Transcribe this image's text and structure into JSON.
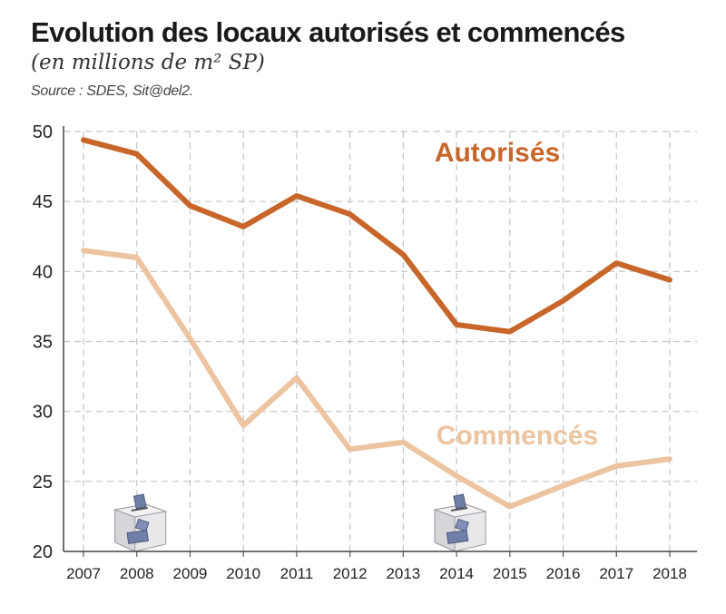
{
  "title": "Evolution des locaux autorisés et commencés",
  "subtitle": "(en millions de m² SP)",
  "source": "Source : SDES, Sit@del2.",
  "chart_data": {
    "type": "line",
    "title": "Evolution des locaux autorisés et commencés",
    "subtitle": "(en millions de m² SP)",
    "xlabel": "",
    "ylabel": "",
    "ylim": [
      20,
      50
    ],
    "yticks": [
      20,
      25,
      30,
      35,
      40,
      45,
      50
    ],
    "grid": true,
    "categories": [
      "2007",
      "2008",
      "2009",
      "2010",
      "2011",
      "2012",
      "2013",
      "2014",
      "2015",
      "2016",
      "2017",
      "2018"
    ],
    "series": [
      {
        "name": "Autorisés",
        "color": "#c8662a",
        "values": [
          49.4,
          48.4,
          44.7,
          43.2,
          45.4,
          44.1,
          41.2,
          36.2,
          35.7,
          37.9,
          40.6,
          39.4
        ]
      },
      {
        "name": "Commencés",
        "color": "#ecc4a0",
        "values": [
          41.5,
          41.0,
          35.2,
          29.0,
          32.4,
          27.3,
          27.8,
          25.4,
          23.2,
          24.7,
          26.1,
          26.6
        ]
      }
    ],
    "markers": [
      {
        "category": "2008",
        "icon": "ballot-box-icon"
      },
      {
        "category": "2014",
        "icon": "ballot-box-icon"
      }
    ]
  }
}
